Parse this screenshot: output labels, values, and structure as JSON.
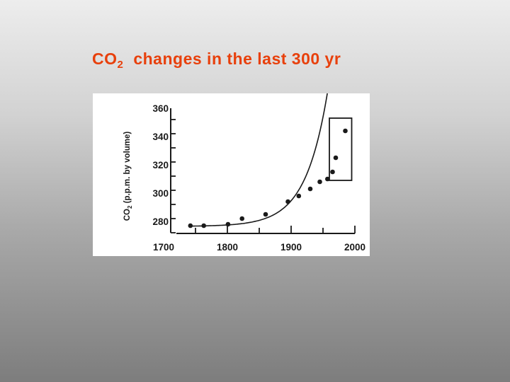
{
  "slide": {
    "title_main": "CO",
    "title_sub": "2",
    "title_rest": "changes in the last 300 yr"
  },
  "colors": {
    "title": "#e8400c",
    "ink": "#1a1a1a",
    "panel": "#ffffff"
  },
  "chart_data": {
    "type": "scatter",
    "title": "",
    "xlabel": "",
    "ylabel": "CO2 (p.p.m. by volume)",
    "ylabel_parts": {
      "main": "CO",
      "sub": "2",
      "rest": " (p.p.m. by volume)"
    },
    "xlim": [
      1700,
      2000
    ],
    "ylim": [
      270,
      360
    ],
    "x_ticks": [
      1700,
      1800,
      1900,
      2000
    ],
    "y_ticks": [
      280,
      300,
      320,
      340,
      360
    ],
    "x_tick_labels": [
      "1700",
      "1800",
      "1900",
      "2000"
    ],
    "y_tick_labels": [
      "280",
      "300",
      "320",
      "340",
      "360"
    ],
    "grid": false,
    "trend_line": "smooth exponential fit",
    "highlight_box": {
      "x": [
        1960,
        1995
      ],
      "y": [
        309,
        353
      ]
    },
    "series": [
      {
        "points": [
          {
            "x": 1742,
            "y": 277
          },
          {
            "x": 1763,
            "y": 277
          },
          {
            "x": 1801,
            "y": 278
          },
          {
            "x": 1823,
            "y": 282
          },
          {
            "x": 1860,
            "y": 285
          },
          {
            "x": 1895,
            "y": 294
          },
          {
            "x": 1912,
            "y": 298
          },
          {
            "x": 1930,
            "y": 303
          },
          {
            "x": 1945,
            "y": 308
          },
          {
            "x": 1957,
            "y": 310
          },
          {
            "x": 1965,
            "y": 315
          },
          {
            "x": 1970,
            "y": 325
          },
          {
            "x": 1985,
            "y": 344
          }
        ]
      }
    ]
  }
}
